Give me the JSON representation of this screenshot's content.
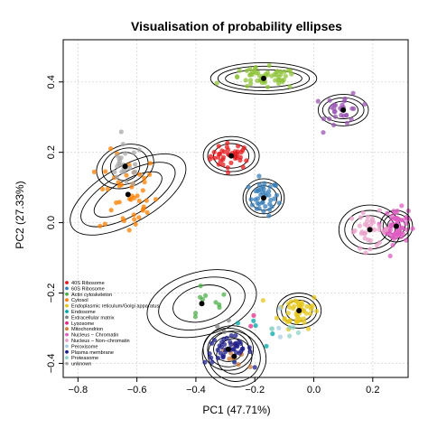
{
  "chart_data": {
    "type": "scatter",
    "title": "Visualisation of probability ellipses",
    "xlabel": "PC1 (47.71%)",
    "ylabel": "PC2 (27.33%)",
    "xlim": [
      -0.85,
      0.32
    ],
    "ylim": [
      -0.44,
      0.52
    ],
    "x_ticks": [
      -0.8,
      -0.6,
      -0.4,
      -0.2,
      0.0,
      0.2
    ],
    "y_ticks": [
      -0.4,
      -0.2,
      0.0,
      0.2,
      0.4
    ],
    "x_tick_labels": [
      "−0.8",
      "−0.6",
      "−0.4",
      "−0.2",
      "0.0",
      "0.2"
    ],
    "y_tick_labels": [
      "−0.4",
      "−0.2",
      "0.0",
      "0.2",
      "0.4"
    ],
    "grid": true,
    "legend_position": "bottom-left",
    "centroid_color": "#000000",
    "ellipse_color": "#000000",
    "classes": [
      {
        "name": "40S Ribosome",
        "color": "#e41a1c",
        "center": [
          -0.28,
          0.19
        ],
        "spread": [
          0.035,
          0.018
        ],
        "n": 40,
        "ellipses": [
          {
            "rx": 0.06,
            "ry": 0.035,
            "angle": 0
          },
          {
            "rx": 0.08,
            "ry": 0.045,
            "angle": 0
          },
          {
            "rx": 0.095,
            "ry": 0.055,
            "angle": 0
          }
        ]
      },
      {
        "name": "60S Ribosome",
        "color": "#377eb8",
        "center": [
          -0.17,
          0.07
        ],
        "spread": [
          0.025,
          0.025
        ],
        "n": 40,
        "ellipses": [
          {
            "rx": 0.045,
            "ry": 0.035,
            "angle": 0
          },
          {
            "rx": 0.06,
            "ry": 0.045,
            "angle": 0
          },
          {
            "rx": 0.07,
            "ry": 0.055,
            "angle": 0
          }
        ]
      },
      {
        "name": "Actin cytoskeleton",
        "color": "#4daf4a",
        "center": [
          -0.38,
          -0.23
        ],
        "spread": [
          0.05,
          0.03
        ],
        "n": 10,
        "ellipses": [
          {
            "rx": 0.1,
            "ry": 0.05,
            "angle": -15
          },
          {
            "rx": 0.15,
            "ry": 0.07,
            "angle": -15
          },
          {
            "rx": 0.19,
            "ry": 0.09,
            "angle": -15
          }
        ]
      },
      {
        "name": "Cytosol",
        "color": "#ff7f00",
        "center": [
          -0.63,
          0.08
        ],
        "spread": [
          0.05,
          0.06
        ],
        "n": 45,
        "ellipses": [
          {
            "rx": 0.13,
            "ry": 0.04,
            "angle": -30
          },
          {
            "rx": 0.18,
            "ry": 0.06,
            "angle": -30
          },
          {
            "rx": 0.22,
            "ry": 0.08,
            "angle": -30
          }
        ]
      },
      {
        "name": "Endoplasmic reticulum/Golgi apparatus",
        "color": "#e6c619",
        "center": [
          -0.05,
          -0.25
        ],
        "spread": [
          0.035,
          0.025
        ],
        "n": 50,
        "ellipses": [
          {
            "rx": 0.045,
            "ry": 0.03,
            "angle": 0
          },
          {
            "rx": 0.06,
            "ry": 0.04,
            "angle": 0
          },
          {
            "rx": 0.075,
            "ry": 0.05,
            "angle": 0
          }
        ]
      },
      {
        "name": "Endosome",
        "color": "#00a6a6",
        "center": [
          -0.23,
          -0.3
        ],
        "spread": [
          0.04,
          0.04
        ],
        "n": 6,
        "ellipses": []
      },
      {
        "name": "Extracellular matrix",
        "color": "#808080",
        "center": [
          -0.3,
          -0.3
        ],
        "spread": [
          0.02,
          0.02
        ],
        "n": 3,
        "ellipses": []
      },
      {
        "name": "Lysosome",
        "color": "#e7298a",
        "center": [
          -0.22,
          -0.31
        ],
        "spread": [
          0.02,
          0.02
        ],
        "n": 2,
        "ellipses": []
      },
      {
        "name": "Mitochondrion",
        "color": "#cd7a3a",
        "center": [
          -0.27,
          -0.38
        ],
        "spread": [
          0.02,
          0.015
        ],
        "n": 10,
        "ellipses": [
          {
            "rx": 0.06,
            "ry": 0.05,
            "angle": 30
          },
          {
            "rx": 0.09,
            "ry": 0.07,
            "angle": 30
          },
          {
            "rx": 0.11,
            "ry": 0.085,
            "angle": 30
          }
        ]
      },
      {
        "name": "Nucleus − Chromatin",
        "color": "#e05dc3",
        "center": [
          0.28,
          -0.01
        ],
        "spread": [
          0.02,
          0.025
        ],
        "n": 65,
        "ellipses": [
          {
            "rx": 0.03,
            "ry": 0.025,
            "angle": 0
          },
          {
            "rx": 0.045,
            "ry": 0.035,
            "angle": 0
          },
          {
            "rx": 0.055,
            "ry": 0.045,
            "angle": 0
          }
        ]
      },
      {
        "name": "Nucleus − Non−chromatin",
        "color": "#e8a0c8",
        "center": [
          0.19,
          -0.02
        ],
        "spread": [
          0.035,
          0.025
        ],
        "n": 35,
        "ellipses": [
          {
            "rx": 0.06,
            "ry": 0.04,
            "angle": 0
          },
          {
            "rx": 0.085,
            "ry": 0.055,
            "angle": 0
          },
          {
            "rx": 0.105,
            "ry": 0.07,
            "angle": 0
          }
        ]
      },
      {
        "name": "Peroxisome",
        "color": "#a6cee3",
        "center": [
          -0.12,
          -0.29
        ],
        "spread": [
          0.02,
          0.02
        ],
        "n": 3,
        "ellipses": []
      },
      {
        "name": "Plasma membrane",
        "color": "#1f1f8c",
        "center": [
          -0.29,
          -0.36
        ],
        "spread": [
          0.04,
          0.02
        ],
        "n": 45,
        "ellipses": [
          {
            "rx": 0.05,
            "ry": 0.035,
            "angle": 0
          },
          {
            "rx": 0.07,
            "ry": 0.05,
            "angle": 0
          },
          {
            "rx": 0.085,
            "ry": 0.06,
            "angle": 0
          }
        ]
      },
      {
        "name": "Proteasome",
        "color": "#8dd3c7",
        "center": [
          -0.08,
          -0.3
        ],
        "spread": [
          0.03,
          0.02
        ],
        "n": 6,
        "ellipses": []
      },
      {
        "name": "unknown",
        "color": "#a8a8a8",
        "center": [
          -0.64,
          0.16
        ],
        "spread": [
          0.03,
          0.03
        ],
        "n": 25,
        "ellipses": [
          {
            "rx": 0.05,
            "ry": 0.04,
            "angle": -20
          },
          {
            "rx": 0.08,
            "ry": 0.05,
            "angle": -20
          },
          {
            "rx": 0.1,
            "ry": 0.06,
            "angle": -20
          }
        ]
      }
    ],
    "extra_clusters": [
      {
        "color": "#8fc33a",
        "center": [
          -0.17,
          0.41
        ],
        "spread": [
          0.06,
          0.015
        ],
        "n": 55,
        "ellipses": [
          {
            "rx": 0.13,
            "ry": 0.025,
            "angle": 0
          },
          {
            "rx": 0.155,
            "ry": 0.035,
            "angle": 0
          },
          {
            "rx": 0.18,
            "ry": 0.045,
            "angle": 0
          }
        ]
      },
      {
        "color": "#9a55b3",
        "center": [
          0.1,
          0.32
        ],
        "spread": [
          0.03,
          0.025
        ],
        "n": 30,
        "ellipses": [
          {
            "rx": 0.05,
            "ry": 0.025,
            "angle": 0
          },
          {
            "rx": 0.07,
            "ry": 0.035,
            "angle": 0
          },
          {
            "rx": 0.085,
            "ry": 0.045,
            "angle": 0
          }
        ]
      }
    ]
  }
}
